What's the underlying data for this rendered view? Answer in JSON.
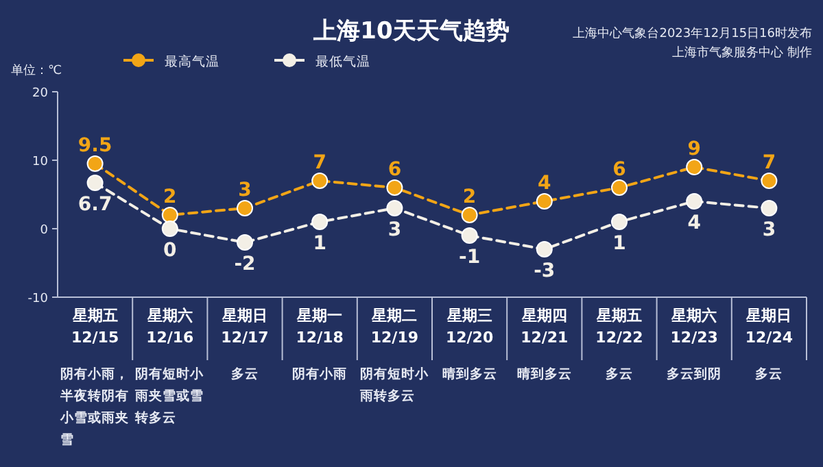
{
  "chart_data": {
    "type": "line",
    "title": "上海10天天气趋势",
    "ylabel": "单位：℃",
    "categories": [
      "星期五\n12/15",
      "星期六\n12/16",
      "星期日\n12/17",
      "星期一\n12/18",
      "星期二\n12/19",
      "星期三\n12/20",
      "星期四\n12/21",
      "星期五\n12/22",
      "星期六\n12/23",
      "星期日\n12/24"
    ],
    "series": [
      {
        "name": "最高气温",
        "color": "#f2a516",
        "values": [
          9.5,
          2,
          3,
          7,
          6,
          2,
          4,
          6,
          9,
          7
        ]
      },
      {
        "name": "最低气温",
        "color": "#f3efe6",
        "values": [
          6.7,
          0,
          -2,
          1,
          3,
          -1,
          -3,
          1,
          4,
          3
        ]
      }
    ],
    "ylim": [
      -10,
      20
    ],
    "yticks": [
      -10,
      0,
      10,
      20
    ],
    "grid": false,
    "legend": "top left",
    "marker": "circle",
    "line_style": "dashed",
    "data_labels": true,
    "annotations": [
      "上海中心气象台2023年12月15日16时发布",
      "上海市气象服务中心 制作",
      "阴有小雨，半夜转阴有小雪或雨夹雪",
      "阴有短时小雨夹雪或雪转多云",
      "多云",
      "阴有小雨",
      "阴有短时小雨转多云",
      "晴到多云",
      "晴到多云",
      "多云",
      "多云到阴",
      "多云"
    ]
  }
}
